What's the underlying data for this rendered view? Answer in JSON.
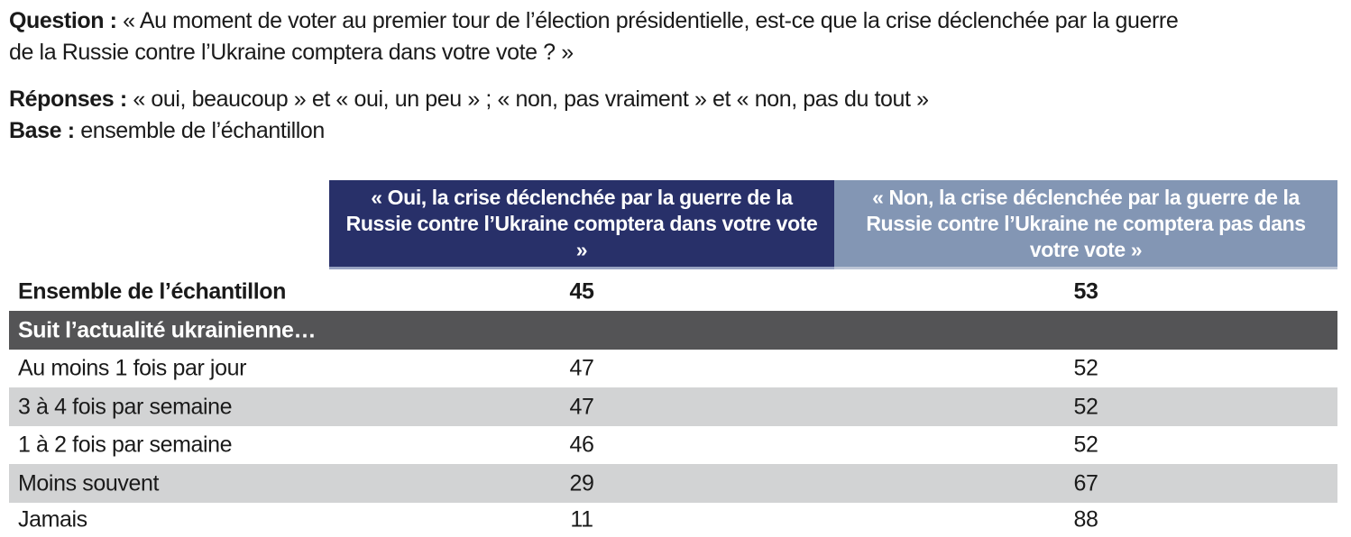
{
  "intro": {
    "question_label": "Question :",
    "question_line1": "« Au moment de voter au premier tour de l’élection présidentielle, est-ce que la crise déclenchée par la guerre",
    "question_line2": "de la Russie contre l’Ukraine comptera dans votre vote ? »",
    "responses_label": "Réponses :",
    "responses_text": "« oui, beaucoup » et « oui, un peu » ; « non, pas vraiment » et « non, pas du tout »",
    "base_label": "Base :",
    "base_text": "ensemble de l’échantillon"
  },
  "table": {
    "columns": [
      {
        "header": "« Oui, la crise déclenchée par la guerre de la Russie contre l’Ukraine comptera dans votre vote »",
        "color": "#283069"
      },
      {
        "header": "« Non, la crise déclenchée par la guerre de la Russie contre l’Ukraine ne comptera pas dans votre vote »",
        "color": "#8396b4"
      }
    ],
    "total_row": {
      "label": "Ensemble de l’échantillon",
      "oui": "45",
      "non": "53"
    },
    "section_header": "Suit l’actualité ukrainienne…",
    "rows": [
      {
        "label": "Au moins 1 fois par jour",
        "oui": "47",
        "non": "52"
      },
      {
        "label": "3 à 4 fois par semaine",
        "oui": "47",
        "non": "52"
      },
      {
        "label": "1 à 2 fois par semaine",
        "oui": "46",
        "non": "52"
      },
      {
        "label": "Moins souvent",
        "oui": "29",
        "non": "67"
      },
      {
        "label": "Jamais",
        "oui": "11",
        "non": "88"
      }
    ],
    "colors": {
      "header_oui_bg": "#283069",
      "header_non_bg": "#8396b4",
      "section_bar_bg": "#545456",
      "stripe_bg": "#d2d3d4",
      "text": "#1a1a1a"
    }
  },
  "chart_data": {
    "type": "table",
    "title": "Au moment de voter au premier tour de l’élection présidentielle, est-ce que la crise déclenchée par la guerre de la Russie contre l’Ukraine comptera dans votre vote ?",
    "columns": [
      "Oui, comptera dans votre vote",
      "Non, ne comptera pas dans votre vote"
    ],
    "categories": [
      "Ensemble de l’échantillon",
      "Au moins 1 fois par jour",
      "3 à 4 fois par semaine",
      "1 à 2 fois par semaine",
      "Moins souvent",
      "Jamais"
    ],
    "series": [
      {
        "name": "Oui",
        "values": [
          45,
          47,
          47,
          46,
          29,
          11
        ]
      },
      {
        "name": "Non",
        "values": [
          53,
          52,
          52,
          52,
          67,
          88
        ]
      }
    ]
  }
}
